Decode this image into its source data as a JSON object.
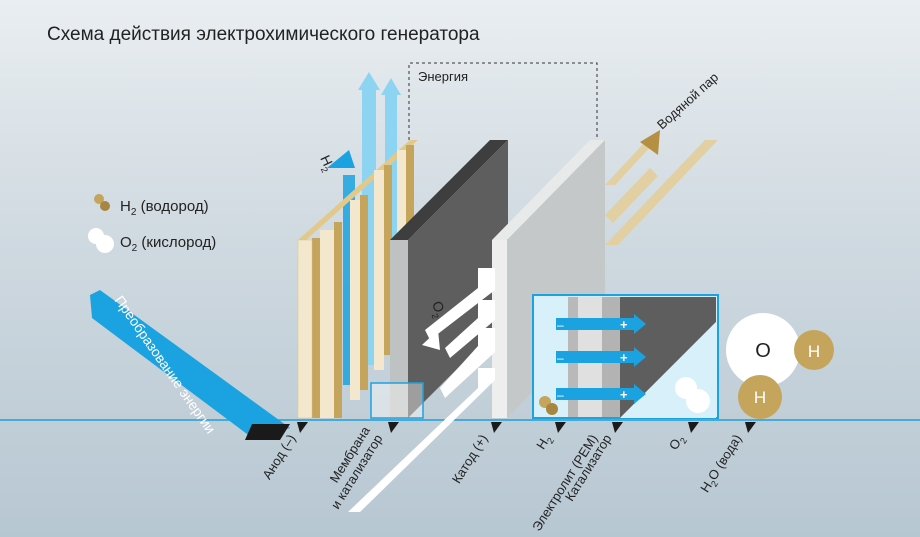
{
  "title": "Схема действия электрохимического генератора",
  "legend": {
    "h2_main": "H",
    "h2_sub": "2",
    "h2_text": " (водород)",
    "o2_main": "O",
    "o2_sub": "2",
    "o2_text": " (кислород)"
  },
  "energy_label": "Энергия",
  "steam_label": "Водяной пар",
  "h2_flow_main": "H",
  "h2_flow_sub": "2",
  "o2_flow_main": "O",
  "o2_flow_sub": "2",
  "conversion_label": "Преобразование энергии",
  "molecule": {
    "o": "O",
    "h1": "H",
    "h2": "H"
  },
  "proton_sign": "+",
  "electron_sign": "–",
  "labels": {
    "anode": "Анод (–)",
    "membrane_1": "Мембрана",
    "membrane_2": "и катализатор",
    "cathode": "Катод (+)",
    "h2_main": "H",
    "h2_sub": "2",
    "electrolyte": "Электролит (PEM)",
    "catalyst": "Катализатор",
    "o2_main": "O",
    "o2_sub": "2",
    "h2o_main": "H",
    "h2o_sub": "2",
    "h2o_rest": "O (вода)"
  },
  "colors": {
    "blue": "#1aa3e0",
    "light_blue": "#8dd3f2",
    "tan": "#c5a45c",
    "cream": "#f3e8cd",
    "dark_plate": "#5e5e5e",
    "light_plate": "#c4c8c8",
    "baseline": "#1f9fd8"
  }
}
